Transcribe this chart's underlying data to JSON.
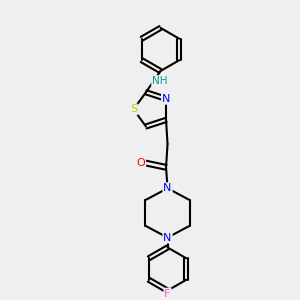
{
  "bg_color": "#efefef",
  "bond_color": "#000000",
  "bond_lw": 1.5,
  "atom_colors": {
    "S": "#cccc00",
    "N": "#0000ff",
    "O": "#ff0000",
    "F": "#ff55cc",
    "NH": "#009999",
    "C": "#000000"
  },
  "font_size": 7.5,
  "figsize": [
    3.0,
    3.0
  ],
  "dpi": 100
}
